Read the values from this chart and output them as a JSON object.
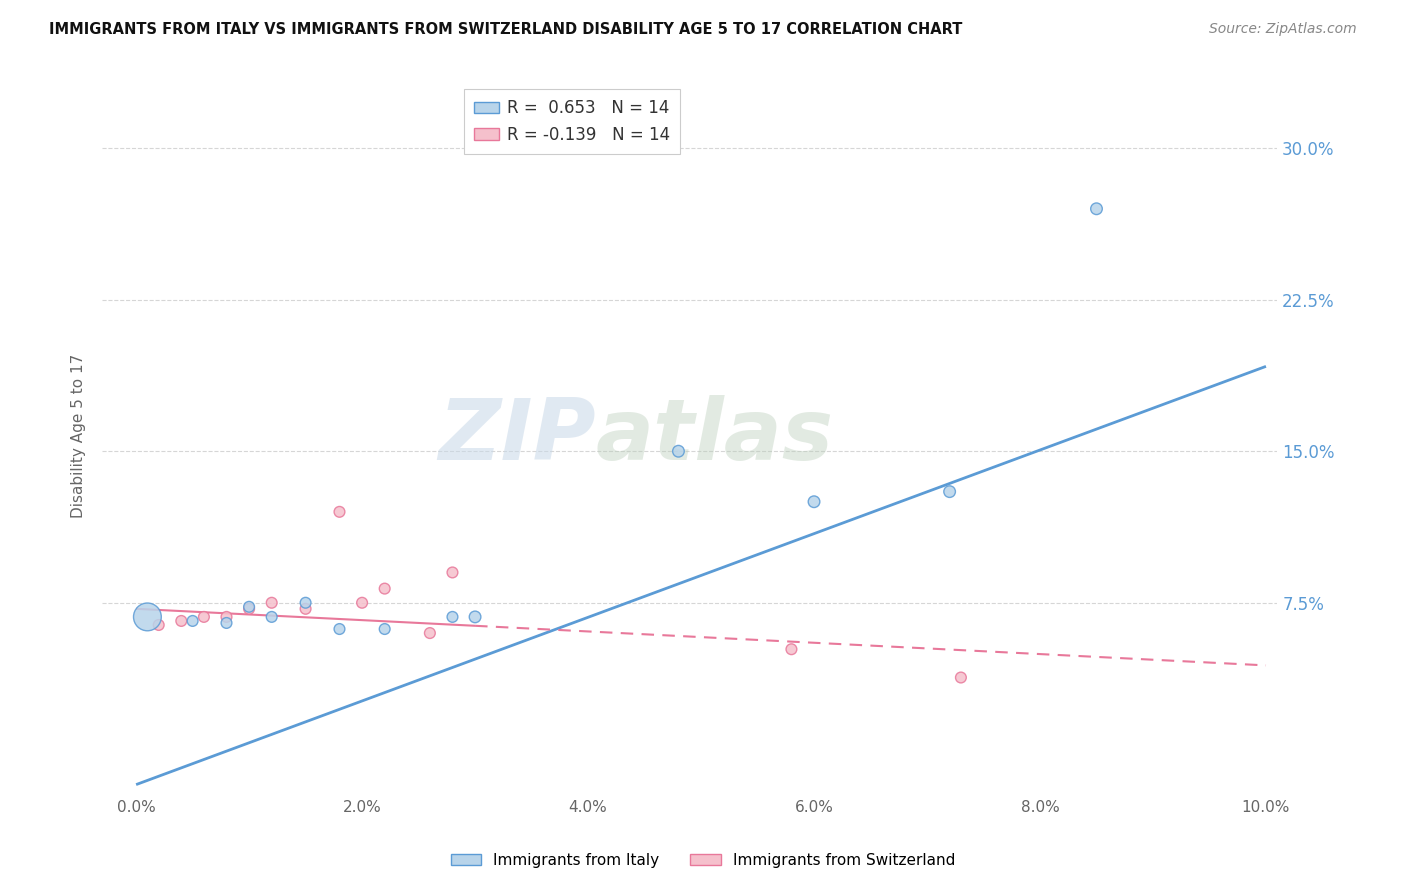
{
  "title": "IMMIGRANTS FROM ITALY VS IMMIGRANTS FROM SWITZERLAND DISABILITY AGE 5 TO 17 CORRELATION CHART",
  "source": "Source: ZipAtlas.com",
  "ylabel": "Disability Age 5 to 17",
  "legend_italy": "Immigrants from Italy",
  "legend_switzerland": "Immigrants from Switzerland",
  "r_italy": 0.653,
  "n_italy": 14,
  "r_switzerland": -0.139,
  "n_switzerland": 14,
  "xlim": [
    0.0,
    0.1
  ],
  "ylim": [
    -0.02,
    0.335
  ],
  "yticks": [
    0.075,
    0.15,
    0.225,
    0.3
  ],
  "xticks": [
    0.0,
    0.02,
    0.04,
    0.06,
    0.08,
    0.1
  ],
  "color_italy": "#b8d4ea",
  "color_switzerland": "#f5c0cc",
  "color_trend_italy": "#5b9bd5",
  "color_trend_switzerland": "#e8789a",
  "italy_x": [
    0.001,
    0.005,
    0.008,
    0.01,
    0.012,
    0.015,
    0.018,
    0.022,
    0.028,
    0.03,
    0.048,
    0.06,
    0.072,
    0.085
  ],
  "italy_y": [
    0.068,
    0.066,
    0.065,
    0.073,
    0.068,
    0.075,
    0.062,
    0.062,
    0.068,
    0.068,
    0.15,
    0.125,
    0.13,
    0.27
  ],
  "italy_size": [
    400,
    60,
    60,
    60,
    60,
    60,
    60,
    60,
    60,
    70,
    70,
    70,
    70,
    70
  ],
  "switzerland_x": [
    0.002,
    0.004,
    0.006,
    0.008,
    0.01,
    0.012,
    0.015,
    0.018,
    0.02,
    0.022,
    0.026,
    0.028,
    0.058,
    0.073
  ],
  "switzerland_y": [
    0.064,
    0.066,
    0.068,
    0.068,
    0.072,
    0.075,
    0.072,
    0.12,
    0.075,
    0.082,
    0.06,
    0.09,
    0.052,
    0.038
  ],
  "switzerland_size": [
    60,
    60,
    60,
    60,
    60,
    60,
    60,
    60,
    60,
    60,
    60,
    60,
    60,
    60
  ],
  "trend_italy_x0": 0.0,
  "trend_italy_y0": -0.015,
  "trend_italy_x1": 0.1,
  "trend_italy_y1": 0.192,
  "trend_swiss_x0": 0.0,
  "trend_swiss_y0": 0.072,
  "trend_swiss_x1": 0.1,
  "trend_swiss_y1": 0.044,
  "watermark_zip": "ZIP",
  "watermark_atlas": "atlas",
  "background_color": "#ffffff"
}
